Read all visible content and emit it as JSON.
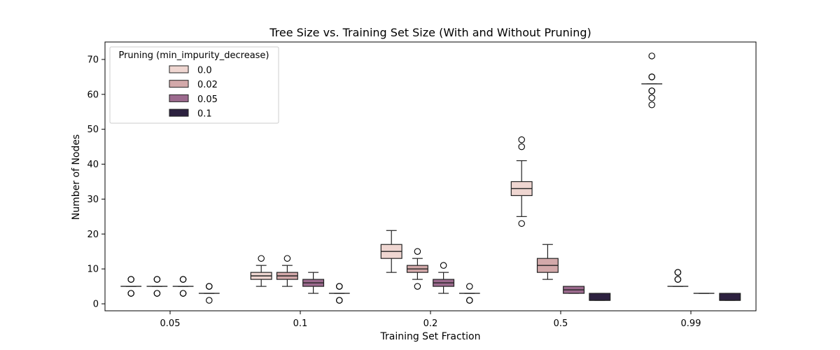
{
  "chart_data": {
    "type": "box",
    "title": "Tree Size vs. Training Set Size (With and Without Pruning)",
    "xlabel": "Training Set Fraction",
    "ylabel": "Number of Nodes",
    "categories": [
      "0.05",
      "0.1",
      "0.2",
      "0.5",
      "0.99"
    ],
    "ylim": [
      -2,
      75
    ],
    "yticks": [
      0,
      10,
      20,
      30,
      40,
      50,
      60,
      70
    ],
    "grid": false,
    "legend": {
      "title": "Pruning (min_impurity_decrease)",
      "placement": "top-left"
    },
    "series": [
      {
        "name": "0.0",
        "color": "#efd6d1",
        "boxes": [
          {
            "whislo": 5,
            "q1": 5,
            "med": 5,
            "q3": 5,
            "whishi": 5,
            "fliers": [
              7,
              7,
              3,
              3
            ]
          },
          {
            "whislo": 5,
            "q1": 7,
            "med": 8,
            "q3": 9,
            "whishi": 11,
            "fliers": [
              13
            ]
          },
          {
            "whislo": 9,
            "q1": 13,
            "med": 15,
            "q3": 17,
            "whishi": 21,
            "fliers": []
          },
          {
            "whislo": 25,
            "q1": 31,
            "med": 33,
            "q3": 35,
            "whishi": 41,
            "fliers": [
              47,
              45,
              23
            ]
          },
          {
            "whislo": 63,
            "q1": 63,
            "med": 63,
            "q3": 63,
            "whishi": 63,
            "fliers": [
              71,
              65,
              65,
              61,
              61,
              59,
              57
            ]
          }
        ]
      },
      {
        "name": "0.02",
        "color": "#d3a9aa",
        "boxes": [
          {
            "whislo": 5,
            "q1": 5,
            "med": 5,
            "q3": 5,
            "whishi": 5,
            "fliers": [
              7,
              7,
              3,
              3
            ]
          },
          {
            "whislo": 5,
            "q1": 7,
            "med": 8,
            "q3": 9,
            "whishi": 11,
            "fliers": [
              13
            ]
          },
          {
            "whislo": 7,
            "q1": 9,
            "med": 10,
            "q3": 11,
            "whishi": 13,
            "fliers": [
              15,
              5
            ]
          },
          {
            "whislo": 7,
            "q1": 9,
            "med": 11,
            "q3": 13,
            "whishi": 17,
            "fliers": []
          },
          {
            "whislo": 5,
            "q1": 5,
            "med": 5,
            "q3": 5,
            "whishi": 5,
            "fliers": [
              9,
              9,
              7,
              7
            ]
          }
        ]
      },
      {
        "name": "0.05",
        "color": "#9c6a8e",
        "boxes": [
          {
            "whislo": 5,
            "q1": 5,
            "med": 5,
            "q3": 5,
            "whishi": 5,
            "fliers": [
              7,
              7,
              3,
              3
            ]
          },
          {
            "whislo": 3,
            "q1": 5,
            "med": 6,
            "q3": 7,
            "whishi": 9,
            "fliers": []
          },
          {
            "whislo": 3,
            "q1": 5,
            "med": 6,
            "q3": 7,
            "whishi": 9,
            "fliers": [
              11
            ]
          },
          {
            "whislo": 3,
            "q1": 3,
            "med": 4,
            "q3": 5,
            "whishi": 5,
            "fliers": []
          },
          {
            "whislo": 3,
            "q1": 3,
            "med": 3,
            "q3": 3,
            "whishi": 3,
            "fliers": []
          }
        ]
      },
      {
        "name": "0.1",
        "color": "#2d2140",
        "boxes": [
          {
            "whislo": 3,
            "q1": 3,
            "med": 3,
            "q3": 3,
            "whishi": 3,
            "fliers": [
              5,
              5,
              1
            ]
          },
          {
            "whislo": 3,
            "q1": 3,
            "med": 3,
            "q3": 3,
            "whishi": 3,
            "fliers": [
              5,
              5,
              1,
              1
            ]
          },
          {
            "whislo": 3,
            "q1": 3,
            "med": 3,
            "q3": 3,
            "whishi": 3,
            "fliers": [
              5,
              1,
              1
            ]
          },
          {
            "whislo": 1,
            "q1": 1,
            "med": 1,
            "q3": 3,
            "whishi": 3,
            "fliers": []
          },
          {
            "whislo": 1,
            "q1": 1,
            "med": 1,
            "q3": 3,
            "whishi": 3,
            "fliers": []
          }
        ]
      }
    ]
  }
}
